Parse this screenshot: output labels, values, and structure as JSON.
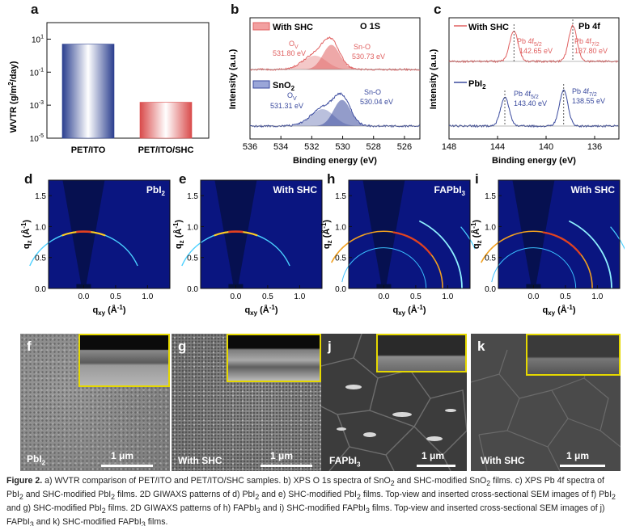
{
  "panels": {
    "a": "a",
    "b": "b",
    "c": "c",
    "d": "d",
    "e": "e",
    "h": "h",
    "i": "i",
    "f": "f",
    "g": "g",
    "j": "j",
    "k": "k"
  },
  "chart_data": [
    {
      "id": "a",
      "type": "bar",
      "title": "",
      "ylabel": "WVTR (g/m²/day)",
      "ylabel_text": "WVTR (g/m",
      "ylabel_sup": "2",
      "ylabel_tail": "/day)",
      "yscale": "log",
      "ylim": [
        1e-05,
        100
      ],
      "yticks": [
        {
          "base": "10",
          "exp": "1"
        },
        {
          "base": "10",
          "exp": "-1"
        },
        {
          "base": "10",
          "exp": "-3"
        },
        {
          "base": "10",
          "exp": "-5"
        }
      ],
      "ytick_values": [
        10,
        0.1,
        0.001,
        1e-05
      ],
      "categories": [
        "PET/ITO",
        "PET/ITO/SHC"
      ],
      "values": [
        5.0,
        0.0015
      ],
      "colors": [
        "#2b3f8f",
        "#d94b4b"
      ]
    },
    {
      "id": "b",
      "type": "line",
      "title": "O 1S",
      "xlabel": "Binding energy (eV)",
      "ylabel": "Intensity (a.u.)",
      "xlim": [
        536,
        525
      ],
      "xticks": [
        "536",
        "534",
        "532",
        "530",
        "528",
        "526"
      ],
      "xtick_values": [
        536,
        534,
        532,
        530,
        528,
        526
      ],
      "series": [
        {
          "name": "With SHC",
          "color": "#e06060",
          "peaks": [
            {
              "label": "O",
              "sub": "V",
              "energy": "531.80 eV",
              "center": 531.8
            },
            {
              "label": "Sn-O",
              "energy": "530.73 eV",
              "center": 530.73
            }
          ]
        },
        {
          "name": "SnO2",
          "name_text": "SnO",
          "name_sub": "2",
          "color": "#3a4a9e",
          "peaks": [
            {
              "label": "O",
              "sub": "V",
              "energy": "531.31 eV",
              "center": 531.31
            },
            {
              "label": "Sn-O",
              "energy": "530.04 eV",
              "center": 530.04
            }
          ]
        }
      ]
    },
    {
      "id": "c",
      "type": "line",
      "title": "Pb 4f",
      "xlabel": "Binding energy (eV)",
      "ylabel": "Intensity (a.u.)",
      "xlim": [
        148,
        134
      ],
      "xticks": [
        "148",
        "144",
        "140",
        "136"
      ],
      "xtick_values": [
        148,
        144,
        140,
        136
      ],
      "series": [
        {
          "name": "With SHC",
          "color": "#e06060",
          "peaks": [
            {
              "label": "Pb 4f",
              "sub": "5/2",
              "energy": "142.65 eV",
              "center": 142.65
            },
            {
              "label": "Pb 4f",
              "sub": "7/2",
              "energy": "137.80 eV",
              "center": 137.8
            }
          ]
        },
        {
          "name": "PbI2",
          "name_text": "PbI",
          "name_sub": "2",
          "color": "#3a4a9e",
          "peaks": [
            {
              "label": "Pb 4f",
              "sub": "5/2",
              "energy": "143.40 eV",
              "center": 143.4
            },
            {
              "label": "Pb 4f",
              "sub": "7/2",
              "energy": "138.55 eV",
              "center": 138.55
            }
          ]
        }
      ]
    }
  ],
  "giwaxs": {
    "xlabel": "q",
    "xlabel_sub": "xy",
    "xlabel_unit": " (Å",
    "xlabel_exp": "-1",
    "xlabel_end": ")",
    "ylabel": "q",
    "ylabel_sub": "z",
    "ylabel_unit": " (Å",
    "ylabel_exp": "-1",
    "ylabel_end": ")",
    "xticks": [
      "0.0",
      "0.5",
      "1.0"
    ],
    "yticks": [
      "1.5",
      "1.0",
      "0.5",
      "0.0"
    ],
    "ytick_values": [
      1.5,
      1.0,
      0.5,
      0.0
    ],
    "xtick_values": [
      0.0,
      0.5,
      1.0
    ],
    "maps": [
      {
        "id": "d",
        "label": "PbI",
        "label_sub": "2"
      },
      {
        "id": "e",
        "label": "With SHC",
        "label_sub": ""
      },
      {
        "id": "h",
        "label": "FAPbI",
        "label_sub": "3"
      },
      {
        "id": "i",
        "label": "With SHC",
        "label_sub": ""
      }
    ]
  },
  "sem": [
    {
      "id": "f",
      "label": "PbI",
      "label_sub": "2",
      "scale": "1 μm"
    },
    {
      "id": "g",
      "label": "With SHC",
      "label_sub": "",
      "scale": "1 μm"
    },
    {
      "id": "j",
      "label": "FAPbI",
      "label_sub": "3",
      "scale": "1 μm"
    },
    {
      "id": "k",
      "label": "With SHC",
      "label_sub": "",
      "scale": "1 μm"
    }
  ],
  "caption": {
    "fig": "Figure 2.",
    "t1": " a) WVTR comparison of PET/ITO and PET/ITO/SHC samples. b) XPS O 1s spectra of SnO",
    "s1": "2",
    "t2": " and SHC-modified SnO",
    "s2": "2",
    "t3": " films. c) XPS Pb 4f spectra of PbI",
    "s3": "2",
    "t4": " and SHC-modified PbI",
    "s4": "2",
    "t5": " films. 2D GIWAXS patterns of d) PbI",
    "s5": "2",
    "t6": " and e) SHC-modified PbI",
    "s6": "2",
    "t7": " films. Top-view and inserted cross-sectional SEM images of f) PbI",
    "s7": "2",
    "t8": " and g) SHC-modified PbI",
    "s8": "2",
    "t9": " films. 2D GIWAXS patterns of h) FAPbI",
    "s9": "3",
    "t10": " and i) SHC-modified FAPbI",
    "s10": "3",
    "t11": " films. Top-view and inserted cross-sectional SEM images of j) FAPbI",
    "s11": "3",
    "t12": " and k) SHC-modified FAPbI",
    "s12": "3",
    "t13": " films."
  }
}
